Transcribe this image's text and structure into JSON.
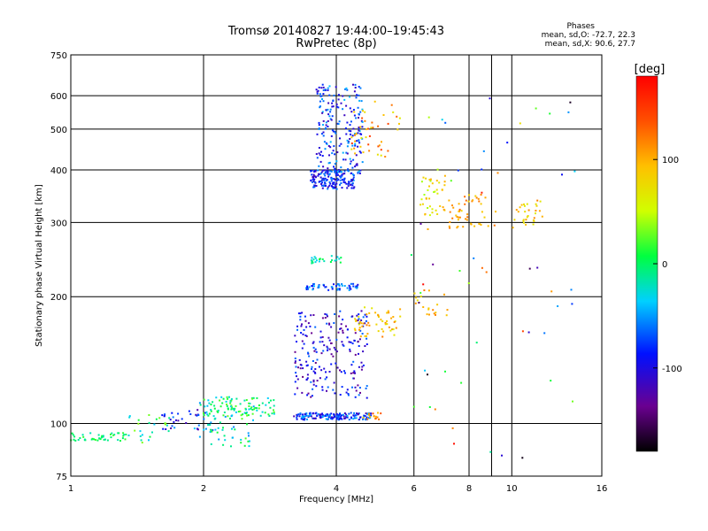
{
  "header": {
    "title": "Tromsø 20140827 19:44:00–19:45:43",
    "subtitle": "RwPretec (8p)"
  },
  "stats": {
    "title": "Phases",
    "line_o": "mean, sd,O: -72.7, 22.3",
    "line_x": "mean, sd,X:  90.6, 27.7"
  },
  "colorbar": {
    "label": "[deg]",
    "ticks": [
      "100",
      "0",
      "-100"
    ],
    "tick_values": [
      100,
      0,
      -100
    ],
    "range": [
      -180,
      180
    ]
  },
  "chart_data": {
    "type": "scatter",
    "xlabel": "Frequency [MHz]",
    "ylabel": "Stationary phase Virtual Height [km]",
    "x_scale": "log",
    "y_scale": "log",
    "xlim": [
      1,
      16
    ],
    "ylim": [
      75,
      750
    ],
    "grid": true,
    "x_ticks": [
      {
        "v": 1,
        "label": "1"
      },
      {
        "v": 2,
        "label": "2"
      },
      {
        "v": 4,
        "label": "4"
      },
      {
        "v": 6,
        "label": "6"
      },
      {
        "v": 8,
        "label": "8"
      },
      {
        "v": 10,
        "label": "10"
      },
      {
        "v": 16,
        "label": "16"
      }
    ],
    "x_minor": [
      9
    ],
    "y_ticks": [
      {
        "v": 75,
        "label": "75"
      },
      {
        "v": 100,
        "label": "100"
      },
      {
        "v": 200,
        "label": "200"
      },
      {
        "v": 300,
        "label": "300"
      },
      {
        "v": 400,
        "label": "400"
      },
      {
        "v": 500,
        "label": "500"
      },
      {
        "v": 600,
        "label": "600"
      },
      {
        "v": 750,
        "label": "750"
      }
    ],
    "clusters": [
      {
        "f": [
          1.0,
          1.35
        ],
        "h": [
          91,
          95
        ],
        "phase": [
          -20,
          20
        ],
        "n": 45
      },
      {
        "f": [
          1.35,
          1.7
        ],
        "h": [
          90,
          105
        ],
        "phase": [
          -40,
          40
        ],
        "n": 25
      },
      {
        "f": [
          1.6,
          2.1
        ],
        "h": [
          95,
          108
        ],
        "phase": [
          -130,
          -40
        ],
        "n": 35
      },
      {
        "f": [
          1.9,
          2.6
        ],
        "h": [
          88,
          112
        ],
        "phase": [
          -60,
          30
        ],
        "n": 60
      },
      {
        "f": [
          2.0,
          2.9
        ],
        "h": [
          104,
          116
        ],
        "phase": [
          -40,
          30
        ],
        "n": 90
      },
      {
        "f": [
          3.2,
          4.8
        ],
        "h": [
          102,
          106
        ],
        "phase": [
          -130,
          -40
        ],
        "n": 160
      },
      {
        "f": [
          4.6,
          5.1
        ],
        "h": [
          102,
          106
        ],
        "phase": [
          80,
          140
        ],
        "n": 15
      },
      {
        "f": [
          3.2,
          4.7
        ],
        "h": [
          115,
          185
        ],
        "phase": [
          -140,
          -60
        ],
        "n": 220
      },
      {
        "f": [
          4.4,
          5.6
        ],
        "h": [
          160,
          190
        ],
        "phase": [
          60,
          120
        ],
        "n": 55
      },
      {
        "f": [
          3.4,
          4.5
        ],
        "h": [
          207,
          215
        ],
        "phase": [
          -100,
          -40
        ],
        "n": 55
      },
      {
        "f": [
          3.5,
          4.1
        ],
        "h": [
          240,
          250
        ],
        "phase": [
          -40,
          10
        ],
        "n": 25
      },
      {
        "f": [
          3.5,
          4.4
        ],
        "h": [
          360,
          400
        ],
        "phase": [
          -120,
          -50
        ],
        "n": 160
      },
      {
        "f": [
          3.6,
          4.6
        ],
        "h": [
          390,
          640
        ],
        "phase": [
          -120,
          -40
        ],
        "n": 210
      },
      {
        "f": [
          4.3,
          5.6
        ],
        "h": [
          430,
          600
        ],
        "phase": [
          60,
          150
        ],
        "n": 45
      },
      {
        "f": [
          6.2,
          7.1
        ],
        "h": [
          310,
          390
        ],
        "phase": [
          40,
          110
        ],
        "n": 40
      },
      {
        "f": [
          7.2,
          9.2
        ],
        "h": [
          290,
          350
        ],
        "phase": [
          80,
          130
        ],
        "n": 50
      },
      {
        "f": [
          10.0,
          11.8
        ],
        "h": [
          290,
          340
        ],
        "phase": [
          60,
          120
        ],
        "n": 30
      },
      {
        "f": [
          6.0,
          7.2
        ],
        "h": [
          180,
          210
        ],
        "phase": [
          60,
          120
        ],
        "n": 20
      },
      {
        "f": [
          5.8,
          14.0
        ],
        "h": [
          80,
          620
        ],
        "phase": [
          -180,
          180
        ],
        "n": 55
      }
    ]
  }
}
